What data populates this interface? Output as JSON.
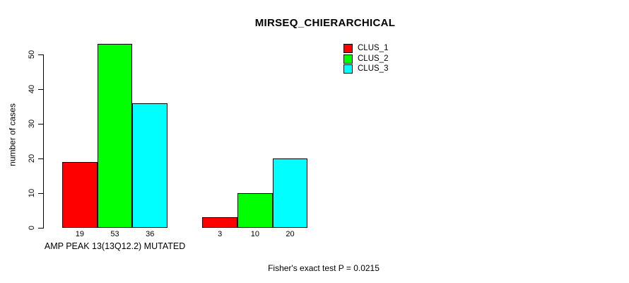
{
  "page": {
    "background_color": "#ffffff",
    "text_color": "#000000"
  },
  "chart_data": {
    "type": "bar",
    "title": "MIRSEQ_CHIERARCHICAL",
    "ylabel": "number of cases",
    "xlabel": "",
    "categories": [
      "AMP PEAK 13(13Q12.2) MUTATED",
      ""
    ],
    "series": [
      {
        "name": "CLUS_1",
        "color": "#ff0000",
        "values": [
          19,
          3
        ]
      },
      {
        "name": "CLUS_2",
        "color": "#00ff00",
        "values": [
          53,
          10
        ]
      },
      {
        "name": "CLUS_3",
        "color": "#00ffff",
        "values": [
          36,
          20
        ]
      }
    ],
    "bar_border_color": "#000000",
    "show_value_labels": true,
    "yticks": [
      0,
      10,
      20,
      30,
      40,
      50
    ],
    "ylim": [
      0,
      53
    ],
    "grid": false,
    "legend": {
      "position": "top-right",
      "entries": [
        {
          "label": "CLUS_1",
          "color": "#ff0000"
        },
        {
          "label": "CLUS_2",
          "color": "#00ff00"
        },
        {
          "label": "CLUS_3",
          "color": "#00ffff"
        }
      ]
    },
    "annotation": "Fisher's exact test P = 0.0215"
  }
}
